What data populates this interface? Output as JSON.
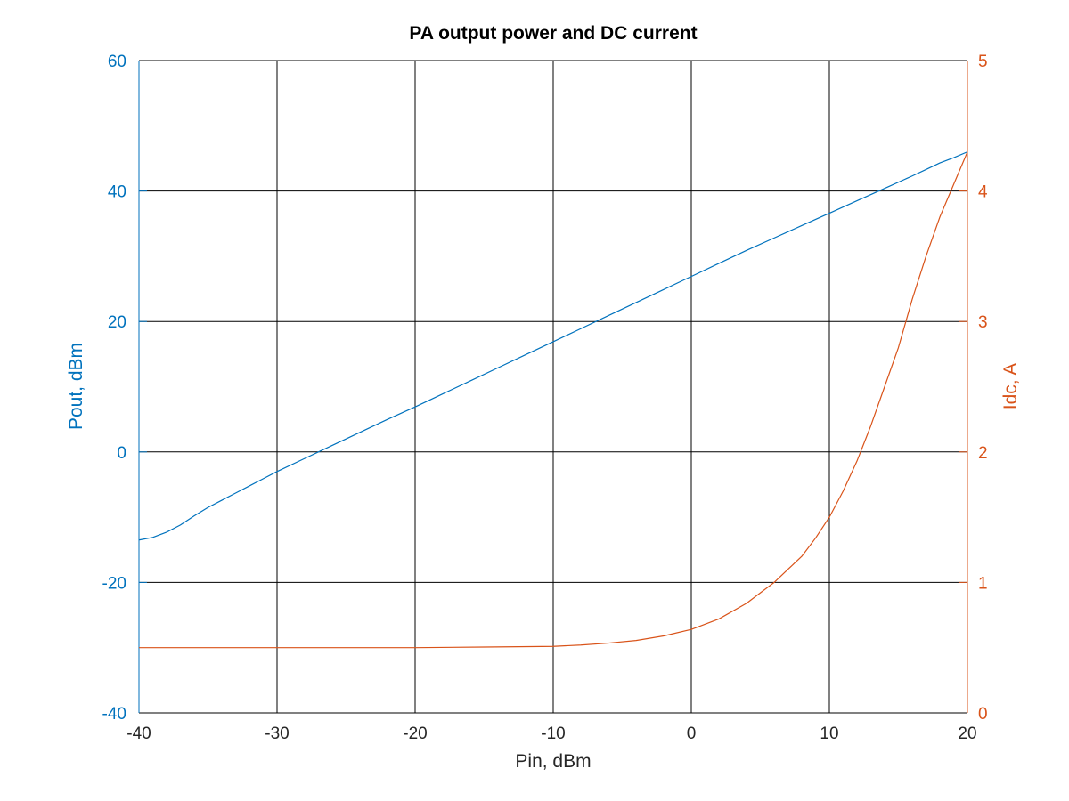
{
  "colors": {
    "left_axis": "#0072bd",
    "right_axis": "#d95319",
    "grid": "#000000",
    "text": "#262626",
    "background": "#ffffff"
  },
  "chart_data": {
    "type": "line",
    "title": "PA output power and DC current",
    "xlabel": "Pin, dBm",
    "ylabel_left": "Pout, dBm",
    "ylabel_right": "Idc, A",
    "xlim": [
      -40,
      20
    ],
    "ylim_left": [
      -40,
      60
    ],
    "ylim_right": [
      0,
      5
    ],
    "x_ticks": [
      "-40",
      "-30",
      "-20",
      "-10",
      "0",
      "10",
      "20"
    ],
    "y_left_ticks": [
      "-40",
      "-20",
      "0",
      "20",
      "40",
      "60"
    ],
    "y_right_ticks": [
      "0",
      "1",
      "2",
      "3",
      "4",
      "5"
    ],
    "grid": true,
    "series": [
      {
        "axis": "left",
        "color": "#0072bd",
        "x": [
          -40,
          -39,
          -38,
          -37,
          -36,
          -35,
          -34,
          -33,
          -32,
          -31,
          -30,
          -28,
          -26,
          -24,
          -22,
          -20,
          -18,
          -16,
          -14,
          -12,
          -10,
          -8,
          -6,
          -4,
          -2,
          0,
          2,
          4,
          6,
          8,
          10,
          12,
          14,
          16,
          17,
          18,
          19,
          20
        ],
        "y": [
          -13.5,
          -13.1,
          -12.3,
          -11.2,
          -9.8,
          -8.5,
          -7.4,
          -6.3,
          -5.2,
          -4.1,
          -3.0,
          -1.0,
          1.0,
          3.0,
          5.0,
          6.9,
          8.9,
          10.9,
          12.9,
          14.9,
          16.9,
          18.9,
          20.9,
          22.9,
          24.9,
          26.9,
          28.9,
          30.9,
          32.8,
          34.7,
          36.6,
          38.5,
          40.4,
          42.3,
          43.3,
          44.3,
          45.1,
          46.0
        ]
      },
      {
        "axis": "right",
        "color": "#d95319",
        "x": [
          -40,
          -30,
          -20,
          -15,
          -10,
          -8,
          -6,
          -4,
          -2,
          0,
          2,
          4,
          5,
          6,
          7,
          8,
          9,
          10,
          11,
          12,
          13,
          14,
          15,
          16,
          17,
          18,
          19,
          20
        ],
        "y": [
          0.5,
          0.5,
          0.5,
          0.505,
          0.51,
          0.52,
          0.535,
          0.555,
          0.59,
          0.64,
          0.72,
          0.84,
          0.92,
          1.0,
          1.1,
          1.2,
          1.34,
          1.5,
          1.7,
          1.93,
          2.2,
          2.5,
          2.8,
          3.17,
          3.5,
          3.8,
          4.05,
          4.3
        ]
      }
    ]
  }
}
